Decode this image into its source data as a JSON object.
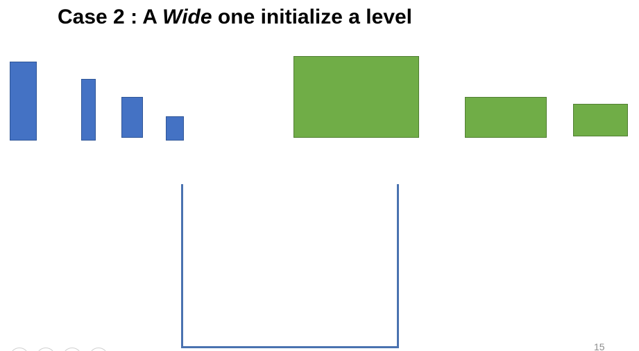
{
  "slide": {
    "title_prefix": "Case 2 : A ",
    "title_emphasis": "Wide",
    "title_suffix": " one initialize a level",
    "page_number": "15"
  },
  "colors": {
    "blue_block": "#4472c4",
    "green_block": "#70ad47",
    "container": "#4a72b0"
  }
}
